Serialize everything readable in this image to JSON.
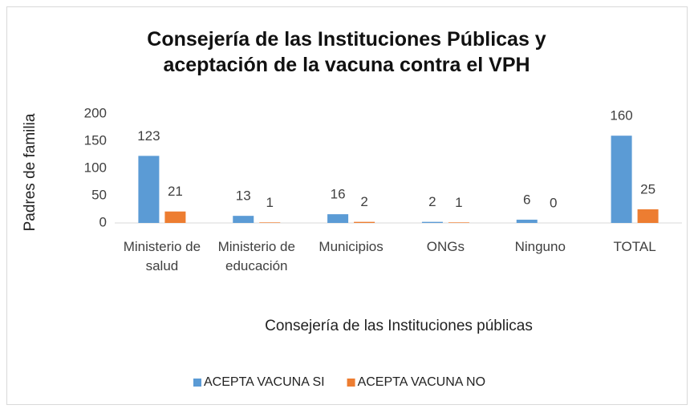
{
  "chart_data": {
    "type": "bar",
    "title": "Consejería de las Instituciones Públicas y aceptación de la vacuna contra el VPH",
    "x_label": "Consejería de las Instituciones públicas",
    "y_label": "Padres de familia",
    "categories": [
      "Ministerio de salud",
      "Ministerio de educación",
      "Municipios",
      "ONGs",
      "Ninguno",
      "TOTAL"
    ],
    "series": [
      {
        "name": "ACEPTA VACUNA SI",
        "color": "#5b9bd5",
        "values": [
          123,
          13,
          16,
          2,
          6,
          160
        ]
      },
      {
        "name": "ACEPTA VACUNA NO",
        "color": "#ed7d31",
        "values": [
          21,
          1,
          2,
          1,
          0,
          25
        ]
      }
    ],
    "ylim": [
      0,
      200
    ],
    "yticks": [
      0,
      50,
      100,
      150,
      200
    ],
    "grid": false,
    "legend": "bottom"
  }
}
